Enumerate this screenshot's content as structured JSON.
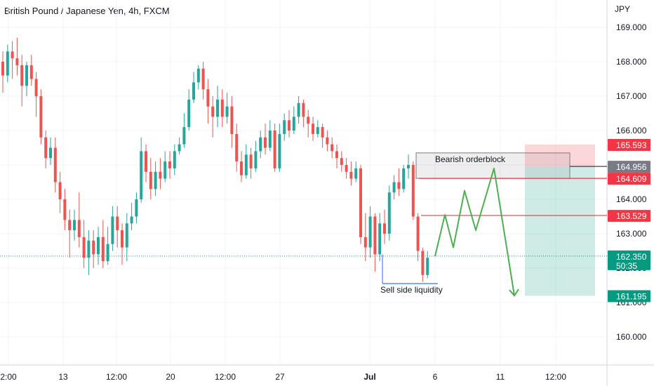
{
  "chart_data": {
    "type": "candlestick",
    "title": "British Pound / Japanese Yen, 4h, FXCM",
    "y_unit": "JPY",
    "ylim": [
      159.6,
      169.8
    ],
    "y_ticks": [
      "169.000",
      "168.000",
      "167.000",
      "166.000",
      "165.000",
      "164.000",
      "163.000",
      "162.000",
      "161.000",
      "160.000"
    ],
    "x_ticks": [
      "2:00",
      "13",
      "12:00",
      "20",
      "12:00",
      "27",
      "Jul",
      "6",
      "11",
      "12:00"
    ],
    "colors": {
      "up": "#26a69a",
      "down": "#ef5350",
      "grid": "#f0f3fa",
      "text": "#131722",
      "projection": "#4caf50"
    },
    "candles": [
      [
        168.0,
        167.6,
        168.3,
        167.1
      ],
      [
        167.6,
        168.3,
        168.5,
        167.4
      ],
      [
        168.3,
        168.1,
        168.6,
        167.5
      ],
      [
        168.1,
        167.9,
        168.7,
        167.6
      ],
      [
        167.9,
        167.3,
        168.2,
        166.7
      ],
      [
        167.3,
        167.9,
        168.0,
        167.0
      ],
      [
        167.9,
        167.5,
        168.2,
        167.3
      ],
      [
        167.5,
        167.0,
        167.7,
        166.4
      ],
      [
        167.0,
        165.8,
        167.2,
        165.6
      ],
      [
        165.8,
        165.2,
        166.0,
        164.9
      ],
      [
        165.2,
        165.5,
        165.8,
        165.0
      ],
      [
        165.5,
        164.5,
        165.8,
        164.2
      ],
      [
        164.5,
        164.0,
        164.8,
        163.6
      ],
      [
        164.0,
        163.4,
        164.3,
        163.1
      ],
      [
        163.4,
        163.1,
        163.7,
        162.3
      ],
      [
        163.1,
        163.4,
        163.7,
        162.8
      ],
      [
        163.4,
        162.9,
        164.2,
        162.6
      ],
      [
        162.9,
        162.3,
        163.4,
        162.0
      ],
      [
        162.3,
        162.8,
        163.1,
        161.8
      ],
      [
        162.8,
        162.4,
        163.1,
        162.0
      ],
      [
        162.4,
        162.9,
        163.2,
        162.1
      ],
      [
        162.9,
        162.2,
        163.4,
        162.0
      ],
      [
        162.2,
        162.7,
        163.2,
        162.1
      ],
      [
        162.7,
        163.5,
        163.8,
        162.5
      ],
      [
        163.5,
        163.1,
        163.8,
        162.6
      ],
      [
        163.1,
        162.6,
        163.3,
        162.1
      ],
      [
        162.6,
        163.3,
        163.6,
        162.2
      ],
      [
        163.3,
        163.5,
        163.9,
        163.1
      ],
      [
        163.5,
        164.0,
        164.2,
        163.3
      ],
      [
        164.0,
        165.4,
        165.8,
        163.9
      ],
      [
        165.4,
        164.8,
        165.6,
        164.5
      ],
      [
        164.8,
        164.3,
        165.2,
        164.0
      ],
      [
        164.3,
        164.8,
        165.1,
        164.1
      ],
      [
        164.8,
        164.6,
        165.2,
        164.3
      ],
      [
        164.6,
        165.1,
        165.4,
        164.5
      ],
      [
        165.1,
        164.9,
        165.4,
        164.6
      ],
      [
        164.9,
        165.4,
        165.6,
        164.7
      ],
      [
        165.4,
        165.6,
        165.8,
        165.3
      ],
      [
        165.6,
        166.1,
        166.5,
        165.5
      ],
      [
        166.1,
        166.9,
        167.2,
        166.0
      ],
      [
        166.9,
        167.4,
        167.7,
        166.8
      ],
      [
        167.4,
        167.8,
        167.9,
        167.2
      ],
      [
        167.8,
        167.2,
        168.0,
        166.9
      ],
      [
        167.2,
        166.7,
        167.5,
        166.2
      ],
      [
        166.7,
        166.4,
        167.0,
        165.8
      ],
      [
        166.4,
        166.9,
        167.3,
        166.1
      ],
      [
        166.9,
        166.4,
        167.2,
        166.1
      ],
      [
        166.4,
        166.7,
        167.1,
        166.2
      ],
      [
        166.7,
        165.9,
        167.0,
        165.5
      ],
      [
        165.9,
        165.1,
        166.2,
        164.8
      ],
      [
        165.1,
        164.7,
        165.4,
        164.5
      ],
      [
        164.7,
        165.3,
        165.6,
        164.6
      ],
      [
        165.3,
        164.9,
        165.5,
        164.6
      ],
      [
        164.9,
        165.4,
        165.7,
        164.8
      ],
      [
        165.4,
        165.8,
        166.0,
        165.2
      ],
      [
        165.8,
        165.5,
        166.2,
        165.3
      ],
      [
        165.5,
        166.0,
        166.3,
        165.4
      ],
      [
        166.0,
        164.9,
        166.2,
        164.8
      ],
      [
        164.9,
        165.9,
        166.2,
        164.8
      ],
      [
        165.9,
        166.3,
        166.5,
        165.7
      ],
      [
        166.3,
        166.0,
        166.6,
        165.8
      ],
      [
        166.0,
        166.4,
        166.7,
        165.9
      ],
      [
        166.4,
        166.8,
        167.0,
        166.2
      ],
      [
        166.8,
        166.4,
        166.9,
        166.1
      ],
      [
        166.4,
        166.2,
        166.6,
        165.8
      ],
      [
        166.2,
        165.9,
        166.4,
        165.7
      ],
      [
        165.9,
        166.1,
        166.3,
        165.8
      ],
      [
        166.1,
        165.8,
        166.2,
        165.5
      ],
      [
        165.8,
        165.6,
        166.0,
        165.4
      ],
      [
        165.6,
        165.4,
        165.8,
        165.2
      ],
      [
        165.4,
        165.2,
        165.6,
        164.9
      ],
      [
        165.2,
        165.0,
        165.4,
        164.8
      ],
      [
        165.0,
        164.8,
        165.2,
        164.6
      ],
      [
        164.8,
        164.6,
        165.1,
        164.4
      ],
      [
        164.6,
        164.9,
        165.1,
        164.5
      ],
      [
        164.9,
        162.9,
        165.0,
        162.7
      ],
      [
        162.9,
        162.6,
        163.6,
        162.2
      ],
      [
        162.6,
        163.5,
        163.8,
        162.3
      ],
      [
        163.5,
        162.4,
        163.6,
        161.9
      ],
      [
        162.4,
        163.3,
        163.6,
        162.2
      ],
      [
        163.3,
        163.0,
        163.7,
        162.7
      ],
      [
        163.0,
        164.2,
        164.4,
        162.8
      ],
      [
        164.2,
        164.5,
        164.7,
        164.0
      ],
      [
        164.5,
        164.3,
        164.9,
        164.1
      ],
      [
        164.3,
        164.9,
        165.0,
        164.2
      ],
      [
        164.9,
        165.0,
        165.3,
        164.6
      ],
      [
        165.0,
        163.5,
        165.1,
        163.4
      ],
      [
        163.5,
        162.5,
        163.6,
        162.2
      ],
      [
        162.5,
        161.8,
        162.6,
        161.6
      ],
      [
        161.8,
        162.3,
        162.5,
        161.7
      ]
    ],
    "last_price": "162.350",
    "timer": "50:35",
    "price_labels": {
      "stop": "165.593",
      "ob_top": "164.956",
      "ob_bottom": "164.609",
      "level": "163.529",
      "target": "161.195"
    },
    "stop_level": 165.593,
    "ob_top_level": 164.956,
    "ob_bottom_level": 164.609,
    "key_level": 163.529,
    "target_level": 161.195,
    "last_level": 162.35,
    "sweep_low_level": 161.55,
    "projection_path": [
      162.35,
      163.55,
      162.6,
      164.25,
      163.1,
      164.9,
      161.2
    ],
    "annotations": {
      "orderblock": "Bearish orderblock",
      "liquidity": "Sell side liquidity"
    }
  }
}
